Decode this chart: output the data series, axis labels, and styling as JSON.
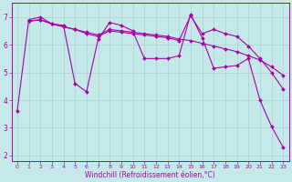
{
  "xlabel": "Windchill (Refroidissement éolien,°C)",
  "bg_color": "#c5e8e8",
  "line_color": "#aa00aa",
  "grid_color": "#aad0d0",
  "xlim": [
    -0.5,
    23.5
  ],
  "ylim": [
    1.8,
    7.5
  ],
  "xticks": [
    0,
    1,
    2,
    3,
    4,
    5,
    6,
    7,
    8,
    9,
    10,
    11,
    12,
    13,
    14,
    15,
    16,
    17,
    18,
    19,
    20,
    21,
    22,
    23
  ],
  "yticks": [
    2,
    3,
    4,
    5,
    6,
    7
  ],
  "curve1_x": [
    0,
    1,
    2,
    3,
    4,
    5,
    6,
    7,
    8,
    9,
    10,
    11,
    12,
    13,
    14,
    15,
    16,
    17,
    18,
    19,
    20,
    21,
    22,
    23
  ],
  "curve1_y": [
    3.6,
    6.9,
    7.0,
    6.75,
    6.7,
    4.6,
    4.3,
    6.2,
    6.8,
    6.7,
    6.5,
    5.5,
    5.5,
    5.5,
    5.6,
    7.1,
    6.25,
    5.15,
    5.2,
    5.25,
    5.5,
    4.0,
    3.05,
    2.3
  ],
  "curve2_x": [
    1,
    2,
    3,
    4,
    5,
    6,
    7,
    8,
    9,
    10,
    11,
    12,
    13,
    14,
    15,
    16,
    17,
    18,
    19,
    20,
    21,
    22,
    23
  ],
  "curve2_y": [
    6.85,
    6.9,
    6.75,
    6.65,
    6.55,
    6.45,
    6.35,
    6.55,
    6.5,
    6.45,
    6.4,
    6.35,
    6.3,
    6.2,
    6.15,
    6.05,
    5.95,
    5.85,
    5.75,
    5.6,
    5.45,
    5.2,
    4.9
  ],
  "curve3_x": [
    1,
    2,
    3,
    4,
    5,
    6,
    7,
    8,
    9,
    10,
    11,
    12,
    13,
    14,
    15,
    16,
    17,
    18,
    19,
    20,
    21,
    22,
    23
  ],
  "curve3_y": [
    6.85,
    6.9,
    6.75,
    6.65,
    6.55,
    6.4,
    6.3,
    6.5,
    6.45,
    6.4,
    6.35,
    6.3,
    6.25,
    6.15,
    7.05,
    6.4,
    6.55,
    6.4,
    6.3,
    5.95,
    5.5,
    5.0,
    4.4
  ],
  "marker": "D",
  "markersize": 2.0,
  "linewidth": 0.8,
  "tick_fontsize_x": 4.5,
  "tick_fontsize_y": 5.5,
  "xlabel_fontsize": 5.5
}
